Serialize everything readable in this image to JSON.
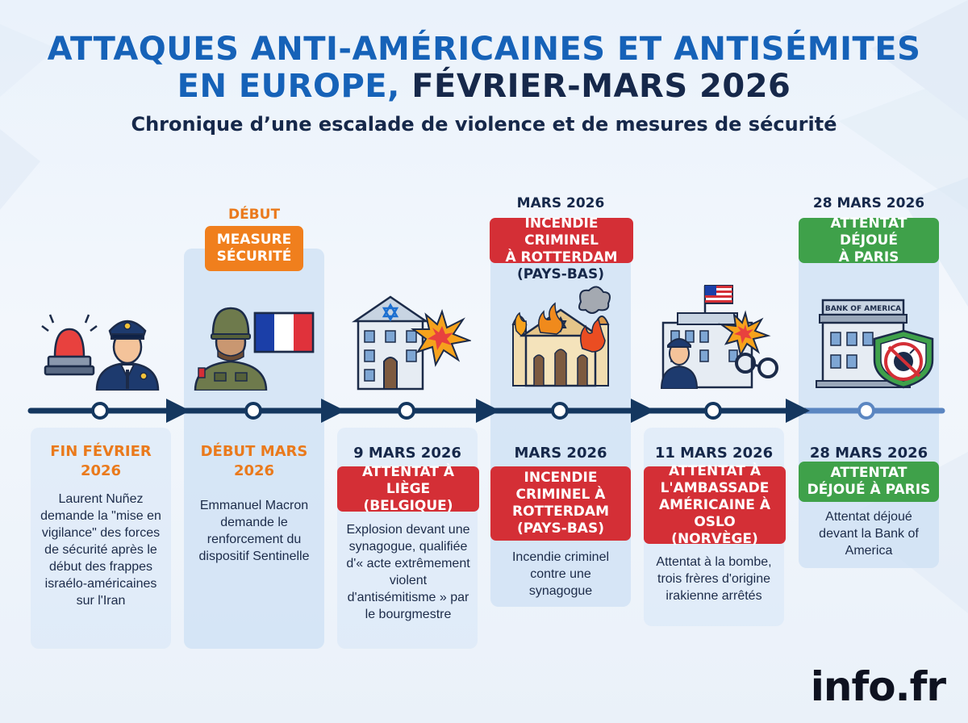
{
  "header": {
    "title_line1": "ATTAQUES ANTI-AMÉRICAINES ET ANTISÉMITES",
    "title_line2_part1": "EN EUROPE,",
    "title_line2_part2": "FÉVRIER-MARS 2026",
    "subtitle": "Chronique d’une escalade de violence et de mesures de sécurité"
  },
  "columns": [
    {
      "date": "FIN FÉVRIER 2026",
      "date_line1": "FIN FÉVRIER",
      "date_line2": "2026",
      "description": "Laurent Nuñez demande la \"mise en vigilance\" des forces de sécurité après le début des frappes israélo-américaines sur l'Iran",
      "illustration": "police-officer-siren-icon"
    },
    {
      "top_label": "DÉBUT",
      "top_pill": "MEASURE SÉCURITÉ",
      "top_pill_line1": "MEASURE",
      "top_pill_line2": "SÉCURITÉ",
      "date_line1": "DÉBUT MARS",
      "date_line2": "2026",
      "description": "Emmanuel Macron demande le renforcement du dispositif Sentinelle",
      "illustration": "soldier-french-flag-icon"
    },
    {
      "date": "9 MARS 2026",
      "pill_line1": "ATTENTAT À",
      "pill_line2": "LIÈGE (BELGIQUE)",
      "description": "Explosion devant une synagogue, qualifiée d'« acte extrêmement violent d'antisémitisme » par le bourgmestre",
      "illustration": "synagogue-explosion-icon"
    },
    {
      "top_date": "MARS 2026",
      "top_pill_line1": "INCENDIE CRIMINEL",
      "top_pill_line2": "À ROTTERDAM",
      "top_sub": "(PAYS-BAS)",
      "date": "MARS 2026",
      "pill_line1": "INCENDIE",
      "pill_line2": "CRIMINEL À",
      "pill_line3": "ROTTERDAM",
      "pill_line4": "(PAYS-BAS)",
      "description": "Incendie criminel contre une synagogue",
      "illustration": "synagogue-fire-icon"
    },
    {
      "date": "11 MARS 2026",
      "pill_line1": "ATTENTAT À",
      "pill_line2": "L'AMBASSADE",
      "pill_line3": "AMÉRICAINE À",
      "pill_line4": "OSLO (NORVÈGE)",
      "description": "Attentat à la bombe, trois frères d'origine irakienne arrêtés",
      "illustration": "embassy-attack-icon"
    },
    {
      "top_date": "28 MARS 2026",
      "top_pill_line1": "ATTENTAT DÉJOUÉ",
      "top_pill_line2": "À PARIS",
      "date": "28 MARS 2026",
      "pill_line1": "ATTENTAT",
      "pill_line2": "DÉJOUÉ À PARIS",
      "description": "Attentat déjoué devant la Bank of America",
      "bank_sign": "BANK OF AMERICA",
      "illustration": "bank-shield-icon"
    }
  ],
  "brand": {
    "logo": "info.fr"
  },
  "colors": {
    "title_blue": "#1662b8",
    "title_dark": "#16284a",
    "orange": "#f07f1d",
    "red": "#d42f36",
    "green": "#3fa14a",
    "timeline": "#14375f"
  }
}
